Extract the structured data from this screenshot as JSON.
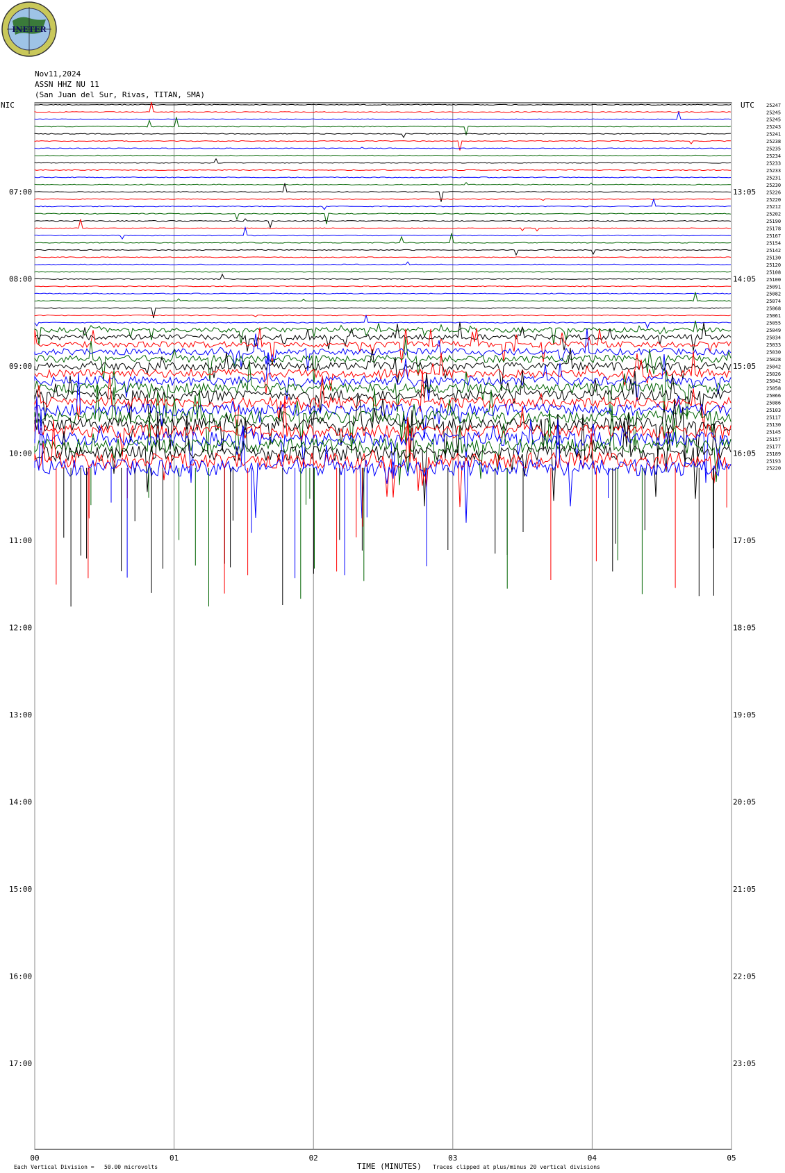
{
  "header": {
    "date": "Nov11,2024",
    "station": "ASSN HHZ NU 11",
    "location": "(San Juan del Sur, Rivas, TITAN, SMA)",
    "logo_text": "INETER"
  },
  "left_zone": "NIC",
  "right_zone": "UTC",
  "footer": {
    "scale": "Each Vertical Division =   50.00 microvolts",
    "xlabel": "TIME (MINUTES)",
    "clip_note": "Traces clipped at plus/minus 20 vertical divisions"
  },
  "colors": {
    "trace_cycle": [
      "#000000",
      "#ff0000",
      "#0000ff",
      "#006400"
    ],
    "grid": "#888888"
  },
  "chart_data": {
    "type": "line",
    "xlabel": "TIME (MINUTES)",
    "x_ticks": [
      "00",
      "01",
      "02",
      "03",
      "04",
      "05"
    ],
    "xlim": [
      0,
      5
    ],
    "left_time_labels": [
      "07:00",
      "08:00",
      "09:00",
      "10:00",
      "11:00",
      "12:00",
      "13:00",
      "14:00",
      "15:00",
      "16:00",
      "17:00"
    ],
    "right_time_labels": [
      "13:05",
      "14:05",
      "15:05",
      "16:05",
      "17:05",
      "18:05",
      "19:05",
      "20:05",
      "21:05",
      "22:05",
      "23:05"
    ],
    "trace_rms_counts": [
      "25247",
      "25245",
      "25245",
      "25243",
      "25241",
      "25238",
      "25235",
      "25234",
      "25233",
      "25233",
      "25231",
      "25230",
      "25226",
      "25220",
      "25212",
      "25202",
      "25190",
      "25178",
      "25167",
      "25154",
      "25142",
      "25130",
      "25120",
      "25108",
      "25100",
      "25091",
      "25082",
      "25074",
      "25068",
      "25061",
      "25055",
      "25049",
      "25034",
      "25033",
      "25030",
      "25028",
      "25042",
      "25026",
      "25042",
      "25058",
      "25066",
      "25086",
      "25103",
      "25117",
      "25130",
      "25145",
      "25157",
      "25177",
      "25189",
      "25193",
      "25220"
    ],
    "traces_per_hour": 12,
    "trace_count": 51
  }
}
